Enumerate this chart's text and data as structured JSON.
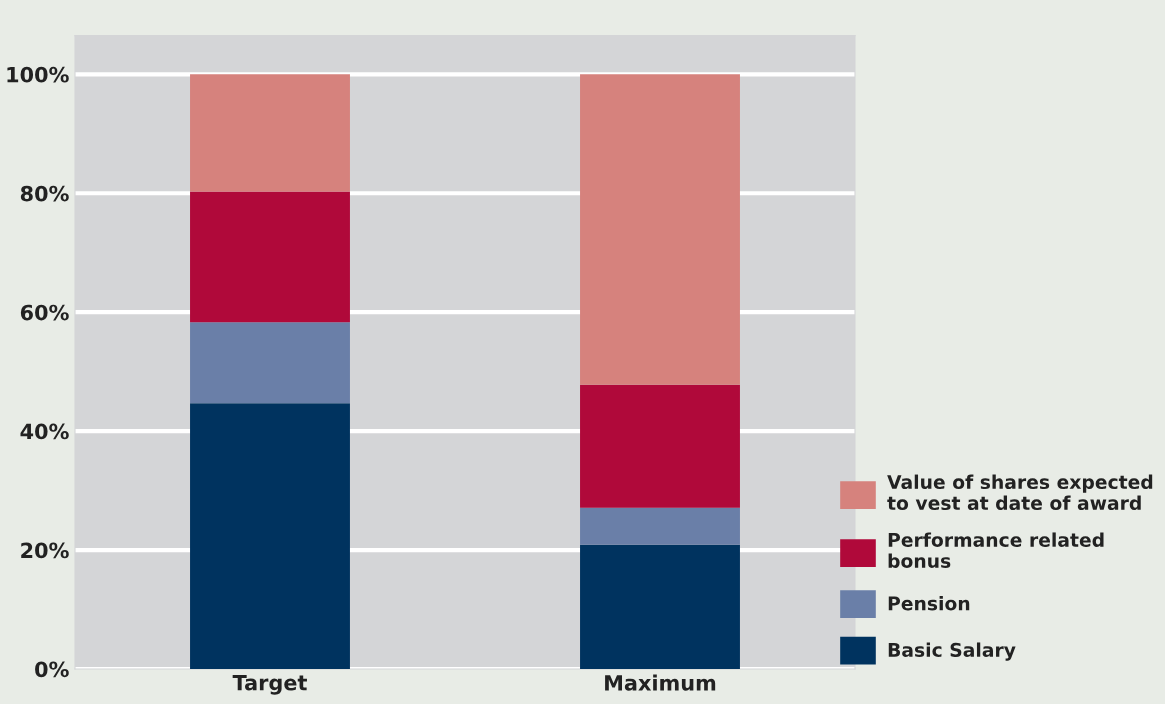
{
  "chart_data": {
    "type": "bar",
    "stacked": true,
    "categories": [
      "Target",
      "Maximum"
    ],
    "series": [
      {
        "name": "Basic Salary",
        "color": "#00335f",
        "values": [
          44.7,
          20.9
        ]
      },
      {
        "name": "Pension",
        "color": "#6a7fa8",
        "values": [
          13.6,
          6.2
        ]
      },
      {
        "name": "Performance related\nbonus",
        "color": "#b0093a",
        "values": [
          22.0,
          20.7
        ]
      },
      {
        "name": "Value of shares expected\nto vest at date of award",
        "color": "#d6827d",
        "values": [
          19.7,
          52.2
        ]
      }
    ],
    "ylim": [
      0,
      106.5
    ],
    "yticks": [
      {
        "value": 0,
        "label": "0%"
      },
      {
        "value": 20,
        "label": "20%"
      },
      {
        "value": 40,
        "label": "40%"
      },
      {
        "value": 60,
        "label": "60%"
      },
      {
        "value": 80,
        "label": "80%"
      },
      {
        "value": 100,
        "label": "100%"
      }
    ],
    "grid": "y",
    "legend": "bottom right"
  }
}
